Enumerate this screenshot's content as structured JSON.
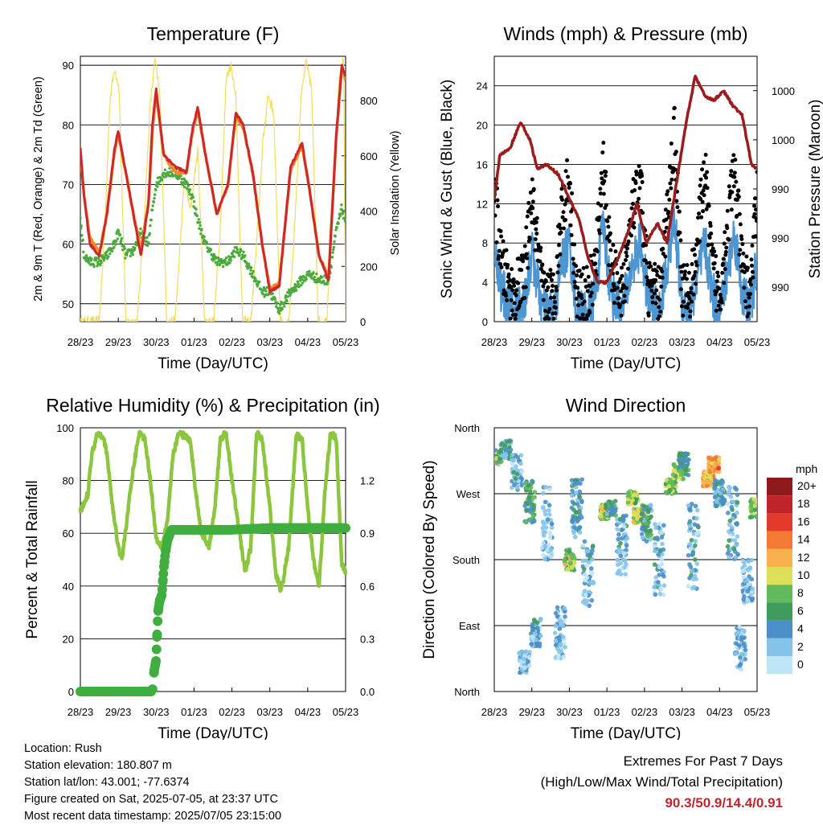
{
  "time_ticks": [
    "28/23",
    "29/23",
    "30/23",
    "01/23",
    "02/23",
    "03/23",
    "04/23",
    "05/23"
  ],
  "colors": {
    "temp2m": "#cc2a2a",
    "temp9m": "#f08a30",
    "dewpoint": "#4aaa3c",
    "solar": "#f3dc58",
    "sonic": "#4d96d2",
    "gust": "#000000",
    "pressure": "#9b1c1c",
    "rh": "#8cc63e",
    "rain": "#3fae3f"
  },
  "chart_data": [
    {
      "id": "temperature",
      "type": "line",
      "title": "Temperature (F)",
      "xlabel": "Time (Day/UTC)",
      "ylabel": "2m & 9m T (Red, Orange) & 2m Td (Green)",
      "y2label": "Solar Insolation (Yellow)",
      "ylim": [
        47,
        91.5
      ],
      "y2lim": [
        0,
        960
      ],
      "yticks": [
        50,
        60,
        70,
        80,
        90
      ],
      "y2ticks": [
        0,
        200,
        400,
        600,
        800
      ],
      "x": [
        0,
        0.1,
        0.25,
        0.5,
        0.7,
        0.9,
        1.0,
        1.2,
        1.4,
        1.6,
        1.8,
        1.9,
        2.0,
        2.2,
        2.5,
        2.8,
        2.95,
        3.1,
        3.3,
        3.6,
        3.9,
        4.1,
        4.3,
        4.55,
        4.8,
        5.0,
        5.25,
        5.55,
        5.85,
        6.05,
        6.3,
        6.55,
        6.75,
        6.9,
        7.0
      ],
      "series": [
        {
          "name": "2m T",
          "values": [
            76,
            68,
            60,
            58,
            65,
            76,
            79,
            72,
            65,
            58,
            67,
            80,
            86,
            75,
            73,
            72,
            79,
            83,
            75,
            65,
            70,
            82,
            80,
            72,
            60,
            52,
            53,
            73,
            77,
            69,
            58,
            54,
            78,
            90,
            88
          ]
        },
        {
          "name": "9m T",
          "values": [
            75,
            68,
            61,
            58.5,
            65,
            75.5,
            78.5,
            72,
            65,
            59,
            67,
            79,
            85,
            75,
            72,
            72,
            78.5,
            82.5,
            75,
            65,
            70,
            81.5,
            79.5,
            72,
            60,
            52.5,
            53.5,
            72.5,
            76.5,
            69,
            58,
            54.5,
            77.5,
            89.5,
            87.5
          ]
        },
        {
          "name": "2m Td",
          "values": [
            64,
            58,
            57,
            57,
            58,
            60,
            62,
            58,
            59,
            62,
            60,
            66,
            70,
            72,
            72,
            70,
            68,
            64,
            60,
            57,
            57,
            59,
            58,
            55,
            52,
            52,
            49,
            52,
            54,
            55,
            54,
            54,
            62,
            66,
            64
          ]
        },
        {
          "name": "Solar",
          "x": [
            0,
            0.5,
            0.65,
            0.78,
            0.9,
            1.02,
            1.2,
            1.5,
            1.68,
            1.84,
            1.97,
            2.1,
            2.28,
            2.5,
            2.62,
            2.75,
            2.9,
            3.1,
            3.28,
            3.52,
            3.68,
            3.85,
            3.97,
            4.1,
            4.28,
            4.5,
            4.65,
            4.82,
            4.95,
            5.1,
            5.28,
            5.5,
            5.65,
            5.82,
            5.95,
            6.1,
            6.28,
            6.5,
            6.65,
            6.82,
            6.95,
            7.0
          ],
          "values": [
            0,
            0,
            350,
            800,
            920,
            850,
            0,
            0,
            350,
            780,
            950,
            820,
            0,
            0,
            250,
            520,
            400,
            620,
            0,
            0,
            300,
            880,
            930,
            830,
            0,
            0,
            280,
            650,
            820,
            760,
            0,
            0,
            330,
            800,
            940,
            850,
            0,
            0,
            380,
            860,
            950,
            0
          ]
        }
      ]
    },
    {
      "id": "winds",
      "type": "line",
      "title": "Winds (mph) & Pressure (mb)",
      "xlabel": "Time (Day/UTC)",
      "ylabel": "Sonic Wind & Gust (Blue, Black)",
      "y2label": "Station Pressure (Maroon)",
      "ylim": [
        0,
        27
      ],
      "yticks": [
        0,
        4,
        8,
        12,
        16,
        20,
        24
      ],
      "y2ticks": [
        "990",
        "990",
        "990",
        "1000",
        "1000"
      ],
      "y2tick_positions": [
        3.5,
        8.5,
        13.5,
        18.5,
        23.5
      ],
      "x": [
        0,
        0.2,
        0.5,
        0.8,
        1.0,
        1.3,
        1.6,
        1.8,
        2.0,
        2.2,
        2.5,
        2.7,
        2.9,
        3.1,
        3.4,
        3.7,
        3.9,
        4.1,
        4.4,
        4.6,
        4.8,
        5.0,
        5.2,
        5.4,
        5.6,
        5.8,
        6.0,
        6.2,
        6.4,
        6.6,
        6.8,
        7.0
      ],
      "series": [
        {
          "name": "Sonic Wind",
          "values": [
            8,
            3,
            1,
            2,
            7,
            1,
            1,
            6,
            8,
            1,
            1,
            3,
            10,
            3,
            1,
            6,
            8,
            2,
            1,
            6,
            10,
            2,
            1,
            4,
            8,
            3,
            1,
            5,
            9,
            3,
            1,
            6
          ]
        },
        {
          "name": "Gust",
          "values": [
            13,
            5,
            2,
            4,
            12,
            2,
            2,
            11,
            14,
            2,
            2,
            5,
            16,
            5,
            2,
            11,
            13,
            3,
            2,
            10,
            19,
            3,
            2,
            7,
            15,
            5,
            2,
            9,
            15,
            5,
            2,
            12
          ]
        },
        {
          "name": "Pressure",
          "x": [
            0,
            0.15,
            0.4,
            0.7,
            0.95,
            1.15,
            1.4,
            1.7,
            2.0,
            2.25,
            2.5,
            2.75,
            3.0,
            3.3,
            3.55,
            3.8,
            4.05,
            4.35,
            4.6,
            4.85,
            5.1,
            5.35,
            5.6,
            5.85,
            6.1,
            6.35,
            6.6,
            6.85,
            7.0
          ],
          "values": [
            12.5,
            17,
            17.5,
            20.3,
            18.5,
            15.5,
            16,
            15,
            12.5,
            10.5,
            6.5,
            4,
            4,
            6.5,
            9,
            12,
            8,
            10,
            8,
            14,
            20,
            25,
            23,
            22.5,
            23.5,
            22,
            21,
            16,
            15.5
          ]
        }
      ]
    },
    {
      "id": "humidity",
      "type": "line",
      "title": "Relative Humidity (%) & Precipitation (in)",
      "xlabel": "Time (Day/UTC)",
      "ylabel": "Percent & Total Rainfall",
      "ylim": [
        0,
        100
      ],
      "y2lim": [
        0,
        1.5
      ],
      "yticks": [
        0,
        20,
        40,
        60,
        80,
        100
      ],
      "y2ticks": [
        "0.0",
        "0.3",
        "0.6",
        "0.9",
        "1.2"
      ],
      "series": [
        {
          "name": "RH",
          "x": [
            0,
            0.1,
            0.2,
            0.3,
            0.45,
            0.6,
            0.7,
            0.85,
            1.0,
            1.1,
            1.2,
            1.4,
            1.55,
            1.7,
            1.85,
            2.0,
            2.15,
            2.3,
            2.45,
            2.6,
            2.75,
            2.9,
            3.05,
            3.2,
            3.4,
            3.55,
            3.7,
            3.85,
            4.0,
            4.2,
            4.35,
            4.5,
            4.65,
            4.8,
            5.0,
            5.15,
            5.3,
            5.5,
            5.7,
            5.85,
            6.0,
            6.15,
            6.3,
            6.45,
            6.6,
            6.75,
            6.9,
            7.0
          ],
          "values": [
            68,
            72,
            75,
            90,
            98,
            97,
            90,
            70,
            55,
            50,
            62,
            85,
            98,
            96,
            80,
            58,
            55,
            65,
            90,
            98,
            97,
            95,
            75,
            60,
            55,
            70,
            96,
            98,
            80,
            60,
            45,
            55,
            98,
            96,
            70,
            45,
            38,
            55,
            97,
            96,
            70,
            50,
            40,
            75,
            98,
            96,
            48,
            45
          ]
        },
        {
          "name": "Rain",
          "x": [
            0,
            0.5,
            1.0,
            1.5,
            1.9,
            1.95,
            2.0,
            2.02,
            2.05,
            2.08,
            2.1,
            2.15,
            2.2,
            2.25,
            2.3,
            2.4,
            3.0,
            4.0,
            5.0,
            6.0,
            7.0
          ],
          "values": [
            0,
            0,
            0,
            0,
            0,
            0.12,
            0.18,
            0.3,
            0.45,
            0.5,
            0.52,
            0.55,
            0.7,
            0.8,
            0.86,
            0.92,
            0.92,
            0.92,
            0.93,
            0.93,
            0.93
          ]
        }
      ]
    },
    {
      "id": "direction",
      "type": "scatter",
      "title": "Wind Direction",
      "xlabel": "Time (Day/UTC)",
      "ylabel": "Direction (Colored By Speed)",
      "yticks": [
        "North",
        "East",
        "South",
        "West",
        "North"
      ],
      "ylim": [
        0,
        360
      ],
      "colorbar_unit": "mph",
      "colorbar_labels": [
        "0",
        "2",
        "4",
        "6",
        "8",
        "10",
        "12",
        "14",
        "16",
        "18",
        "20+"
      ],
      "colorbar_colors": [
        "#bfe6f7",
        "#85c4ea",
        "#4b8fc8",
        "#3f9c5c",
        "#61bb5a",
        "#dfe05a",
        "#f7b24d",
        "#f27a34",
        "#e23a2b",
        "#c0232a",
        "#8e1b1b"
      ],
      "clusters": [
        {
          "x": 0.05,
          "dir": 320,
          "spread": 20,
          "speed": 7
        },
        {
          "x": 0.3,
          "dir": 330,
          "spread": 25,
          "speed": 4
        },
        {
          "x": 0.6,
          "dir": 300,
          "spread": 50,
          "speed": 3
        },
        {
          "x": 0.8,
          "dir": 40,
          "spread": 30,
          "speed": 2
        },
        {
          "x": 0.95,
          "dir": 260,
          "spread": 60,
          "speed": 6
        },
        {
          "x": 1.1,
          "dir": 80,
          "spread": 40,
          "speed": 3
        },
        {
          "x": 1.4,
          "dir": 230,
          "spread": 100,
          "speed": 2
        },
        {
          "x": 1.75,
          "dir": 80,
          "spread": 70,
          "speed": 2
        },
        {
          "x": 2.0,
          "dir": 180,
          "spread": 30,
          "speed": 9
        },
        {
          "x": 2.2,
          "dir": 250,
          "spread": 80,
          "speed": 4
        },
        {
          "x": 2.5,
          "dir": 160,
          "spread": 90,
          "speed": 3
        },
        {
          "x": 2.95,
          "dir": 245,
          "spread": 20,
          "speed": 9
        },
        {
          "x": 3.1,
          "dir": 250,
          "spread": 20,
          "speed": 5
        },
        {
          "x": 3.4,
          "dir": 200,
          "spread": 80,
          "speed": 3
        },
        {
          "x": 3.7,
          "dir": 265,
          "spread": 20,
          "speed": 8
        },
        {
          "x": 3.85,
          "dir": 240,
          "spread": 20,
          "speed": 10
        },
        {
          "x": 4.05,
          "dir": 230,
          "spread": 50,
          "speed": 5
        },
        {
          "x": 4.4,
          "dir": 180,
          "spread": 100,
          "speed": 3
        },
        {
          "x": 4.7,
          "dir": 280,
          "spread": 20,
          "speed": 8
        },
        {
          "x": 4.9,
          "dir": 300,
          "spread": 20,
          "speed": 9
        },
        {
          "x": 5.05,
          "dir": 310,
          "spread": 30,
          "speed": 5
        },
        {
          "x": 5.3,
          "dir": 200,
          "spread": 120,
          "speed": 3
        },
        {
          "x": 5.7,
          "dir": 290,
          "spread": 20,
          "speed": 12
        },
        {
          "x": 5.85,
          "dir": 310,
          "spread": 20,
          "speed": 13
        },
        {
          "x": 6.0,
          "dir": 270,
          "spread": 40,
          "speed": 4
        },
        {
          "x": 6.35,
          "dir": 230,
          "spread": 100,
          "speed": 3
        },
        {
          "x": 6.55,
          "dir": 60,
          "spread": 60,
          "speed": 2
        },
        {
          "x": 6.75,
          "dir": 150,
          "spread": 60,
          "speed": 2
        },
        {
          "x": 6.95,
          "dir": 250,
          "spread": 25,
          "speed": 8
        }
      ]
    }
  ],
  "footer": {
    "location": "Location: Rush",
    "elevation": "Station elevation: 180.807 m",
    "latlon": "Station lat/lon: 43.001; -77.6374",
    "created": "Figure created on Sat, 2025-07-05, at 23:37 UTC",
    "recent": "Most recent data timestamp: 2025/07/05 23:15:00"
  },
  "extremes": {
    "heading": "Extremes For Past 7 Days",
    "subheading": "(High/Low/Max Wind/Total Precipitation)",
    "values": "90.3/50.9/14.4/0.91"
  }
}
